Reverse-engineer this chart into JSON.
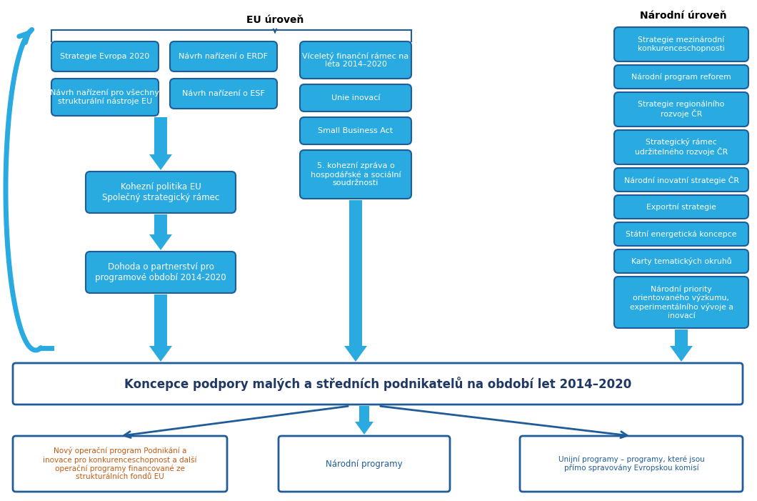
{
  "bg_color": "#ffffff",
  "box_fill_blue": "#29ABE2",
  "box_edge_blue": "#1F5C99",
  "text_white": "#ffffff",
  "text_blue": "#1F5C99",
  "text_dark_blue": "#1F3864",
  "text_orange": "#C55A11",
  "eu_label": "EU úroveň",
  "narodni_label": "Národní úroveň",
  "main_box_text": "Koncepce podpory malých a středních podnikatelů na období let 2014–2020",
  "kohezni_text": "Kohezní politika EU\nSpolečný strategický rámec",
  "dohoda_text": "Dohoda o partnerství pro\nprogramové období 2014-2020",
  "box1": "Strategie Evropa 2020",
  "box2": "Návrh nařízení pro všechny\nstrukturální nástroje EU",
  "box3": "Návrh nařízení o ERDF",
  "box4": "Návrh nařízení o ESF",
  "box_c1": "Víceletý finanční rámec na\nléta 2014–2020",
  "box_c2": "Unie inovací",
  "box_c3": "Small Business Act",
  "box_c4": "5. kohezní zpráva o\nhospodářské a sociální\nsoudržnosti",
  "narodni_boxes": [
    "Strategie mezinárodní\nkonkurenceschopnosti",
    "Národní program reforem",
    "Strategie regionálního\nrozvoje ČR",
    "Strategický rámec\nudržitelného rozvoje ČR",
    "Národní inovatní strategie ČR",
    "Exportní strategie",
    "Státní energetická koncepce",
    "Karty tematických okruhů",
    "Národní priority\norientovaného výzkumu,\nexperimentálního vývoje a\ninovací"
  ],
  "narodni_box_heights": [
    48,
    33,
    48,
    48,
    33,
    33,
    33,
    33,
    72
  ],
  "bottom_left_text": "Nový operační program Podnikání a\ninovace pro konkurenceschopnost a další\noperační programy financované ze\nstrukturálních fondů EU",
  "bottom_mid_text": "Národní programy",
  "bottom_right_text": "Unijní programy – programy, které jsou\npřímo spravovány Evropskou komisí"
}
